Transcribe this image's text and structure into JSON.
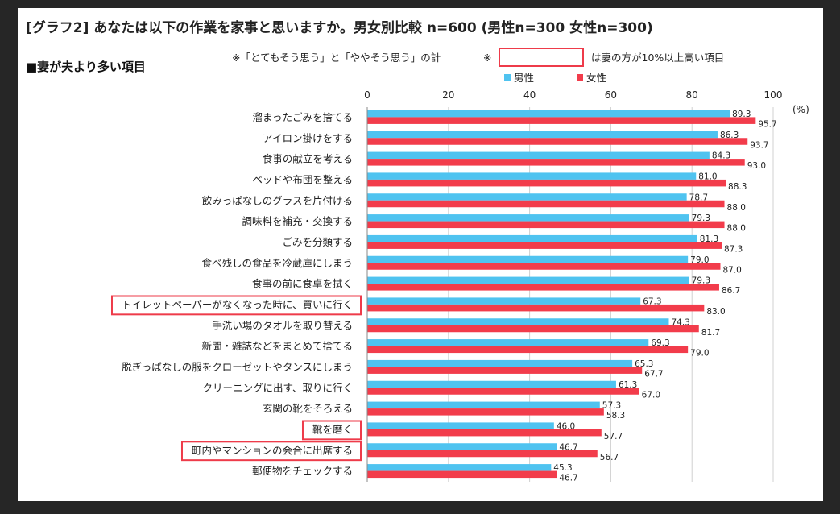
{
  "chart_data": {
    "type": "bar",
    "orientation": "horizontal",
    "title": "[グラフ2] あなたは以下の作業を家事と思いますか。男女別比較 n=600 (男性n=300 女性n=300)",
    "subtitle": "■妻が夫より多い項目",
    "note_left": "※「とてもそう思う」と「ややそう思う」の計",
    "note_mark": "※",
    "note_right": "は妻の方が10%以上高い項目",
    "unit_label": "(%)",
    "xlim": [
      0,
      100
    ],
    "xticks": [
      "0",
      "20",
      "40",
      "60",
      "80",
      "100"
    ],
    "grid": true,
    "legend_position": "top",
    "categories": [
      "溜まったごみを捨てる",
      "アイロン掛けをする",
      "食事の献立を考える",
      "ベッドや布団を整える",
      "飲みっぱなしのグラスを片付ける",
      "調味料を補充・交換する",
      "ごみを分類する",
      "食べ残しの食品を冷蔵庫にしまう",
      "食事の前に食卓を拭く",
      "トイレットペーパーがなくなった時に、買いに行く",
      "手洗い場のタオルを取り替える",
      "新聞・雑誌などをまとめて捨てる",
      "脱ぎっぱなしの服をクローゼットやタンスにしまう",
      "クリーニングに出す、取りに行く",
      "玄関の靴をそろえる",
      "靴を磨く",
      "町内やマンションの会合に出席する",
      "郵便物をチェックする"
    ],
    "highlighted": [
      9,
      15,
      16
    ],
    "series": [
      {
        "name": "男性",
        "color": "#4fc3f0",
        "values": [
          89.3,
          86.3,
          84.3,
          81.0,
          78.7,
          79.3,
          81.3,
          79.0,
          79.3,
          67.3,
          74.3,
          69.3,
          65.3,
          61.3,
          57.3,
          46.0,
          46.7,
          45.3
        ],
        "labels": [
          "89.3",
          "86.3",
          "84.3",
          "81.0",
          "78.7",
          "79.3",
          "81.3",
          "79.0",
          "79.3",
          "67.3",
          "74.3",
          "69.3",
          "65.3",
          "61.3",
          "57.3",
          "46.0",
          "46.7",
          "45.3"
        ]
      },
      {
        "name": "女性",
        "color": "#f23c4b",
        "values": [
          95.7,
          93.7,
          93.0,
          88.3,
          88.0,
          88.0,
          87.3,
          87.0,
          86.7,
          83.0,
          81.7,
          79.0,
          67.7,
          67.0,
          58.3,
          57.7,
          56.7,
          46.7
        ],
        "labels": [
          "95.7",
          "93.7",
          "93.0",
          "88.3",
          "88.0",
          "88.0",
          "87.3",
          "87.0",
          "86.7",
          "83.0",
          "81.7",
          "79.0",
          "67.7",
          "67.0",
          "58.3",
          "57.7",
          "56.7",
          "46.7"
        ]
      }
    ]
  }
}
